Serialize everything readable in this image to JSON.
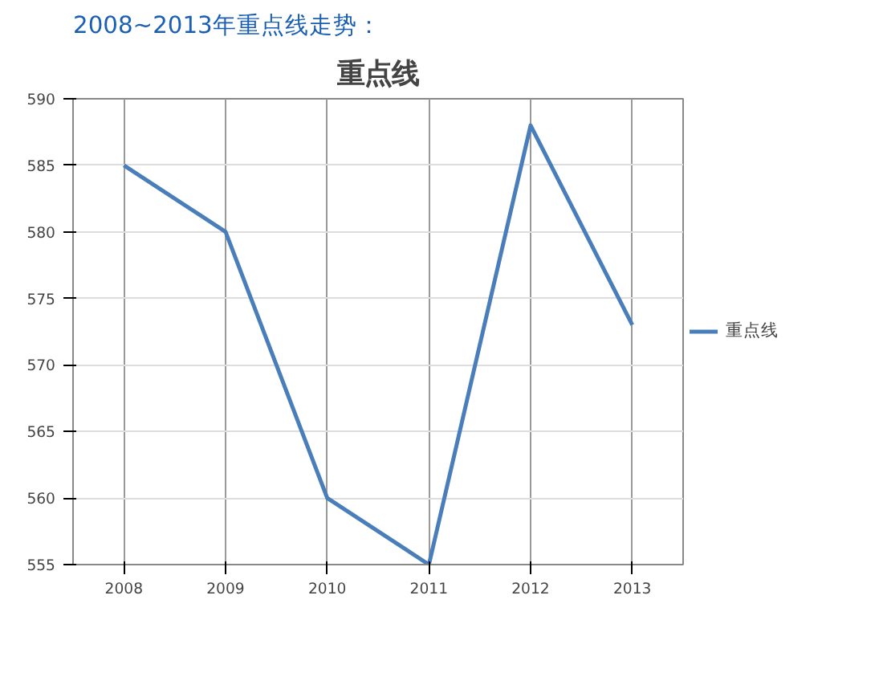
{
  "chart_data": {
    "type": "line",
    "title": "重点线",
    "annotations": [
      "2008~2013年重点线走势："
    ],
    "categories": [
      "2008",
      "2009",
      "2010",
      "2011",
      "2012",
      "2013"
    ],
    "series": [
      {
        "name": "重点线",
        "color": "#4a7ebb",
        "values": [
          585,
          580,
          560,
          555,
          588,
          573
        ]
      }
    ],
    "ylim": [
      555,
      590
    ],
    "yticks": [
      555,
      560,
      565,
      570,
      575,
      580,
      585,
      590
    ],
    "grid": true,
    "legend": "right",
    "marker": "none",
    "line_style": "solid"
  }
}
